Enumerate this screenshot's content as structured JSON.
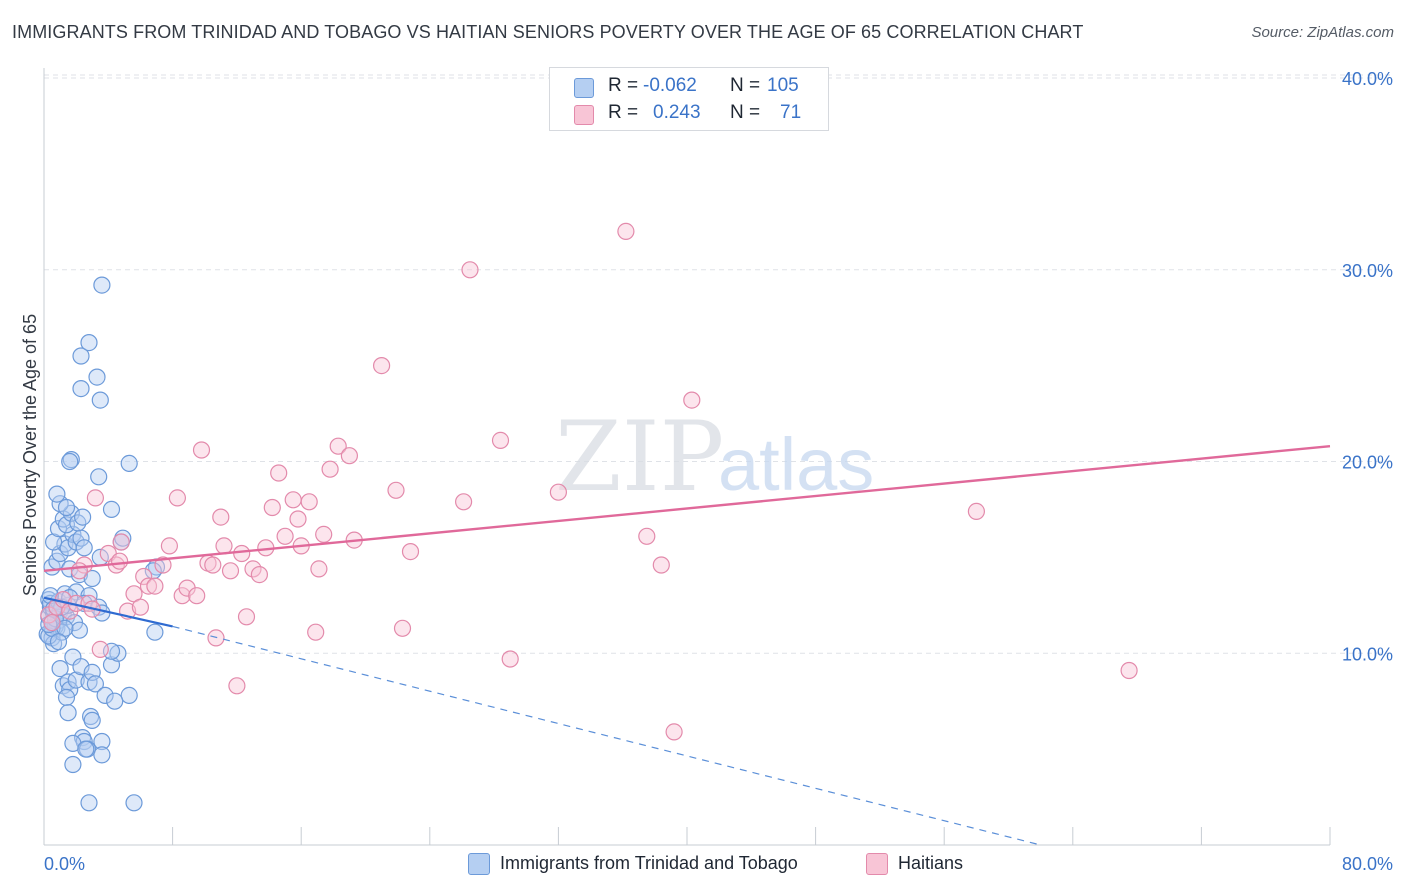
{
  "title": "IMMIGRANTS FROM TRINIDAD AND TOBAGO VS HAITIAN SENIORS POVERTY OVER THE AGE OF 65 CORRELATION CHART",
  "source": "Source: ZipAtlas.com",
  "watermark": {
    "zip": "ZIP",
    "atlas": "atlas"
  },
  "legend": {
    "rows": [
      {
        "r_label": "R =",
        "r_value": "-0.062",
        "n_label": "N =",
        "n_value": "105",
        "color": "#b5cff2",
        "stroke": "#6c9ad9"
      },
      {
        "r_label": "R =",
        "r_value": "0.243",
        "n_label": "N =",
        "n_value": "71",
        "color": "#f8c5d6",
        "stroke": "#e38aab"
      }
    ]
  },
  "bottom_legend": [
    {
      "label": "Immigrants from Trinidad and Tobago",
      "color": "#b5cff2",
      "stroke": "#6c9ad9"
    },
    {
      "label": "Haitians",
      "color": "#f8c5d6",
      "stroke": "#e38aab"
    }
  ],
  "chart_data": {
    "type": "scatter",
    "title": "IMMIGRANTS FROM TRINIDAD AND TOBAGO VS HAITIAN SENIORS POVERTY OVER THE AGE OF 65 CORRELATION CHART",
    "xlabel": "",
    "ylabel": "Seniors Poverty Over the Age of 65",
    "xlim": [
      0,
      80
    ],
    "ylim": [
      0,
      40
    ],
    "x_tick_labels": [
      "0.0%",
      "80.0%"
    ],
    "y_ticks": [
      10,
      20,
      30,
      40
    ],
    "y_tick_labels": [
      "10.0%",
      "20.0%",
      "30.0%",
      "40.0%"
    ],
    "grid": "horizontal dashed",
    "legend_position": "top-center",
    "series": [
      {
        "name": "Immigrants from Trinidad and Tobago",
        "color": "#6c9ad9",
        "fill": "#b5cff2",
        "trend": {
          "x0": 0,
          "y0": 12.9,
          "x1": 8.0,
          "y1": 11.4,
          "dash_to_x": 62,
          "dash_to_y": 0
        },
        "points": [
          [
            0.3,
            11.9
          ],
          [
            0.4,
            12.4
          ],
          [
            0.5,
            11.6
          ],
          [
            0.3,
            12.8
          ],
          [
            0.6,
            12.1
          ],
          [
            0.2,
            11.0
          ],
          [
            0.8,
            11.3
          ],
          [
            0.5,
            10.8
          ],
          [
            0.9,
            11.7
          ],
          [
            0.4,
            12.6
          ],
          [
            1.0,
            12.2
          ],
          [
            0.7,
            11.4
          ],
          [
            1.2,
            12.0
          ],
          [
            0.6,
            10.5
          ],
          [
            1.1,
            11.1
          ],
          [
            0.3,
            10.9
          ],
          [
            0.9,
            12.7
          ],
          [
            1.4,
            11.9
          ],
          [
            1.5,
            12.5
          ],
          [
            1.3,
            13.1
          ],
          [
            1.0,
            9.2
          ],
          [
            1.2,
            8.3
          ],
          [
            1.5,
            8.5
          ],
          [
            1.8,
            9.8
          ],
          [
            1.6,
            8.1
          ],
          [
            2.0,
            8.6
          ],
          [
            1.4,
            7.7
          ],
          [
            2.3,
            9.3
          ],
          [
            2.8,
            8.5
          ],
          [
            1.5,
            6.9
          ],
          [
            3.0,
            9.0
          ],
          [
            3.2,
            8.4
          ],
          [
            2.9,
            6.7
          ],
          [
            3.0,
            6.5
          ],
          [
            2.4,
            5.6
          ],
          [
            2.5,
            5.4
          ],
          [
            1.8,
            5.3
          ],
          [
            2.7,
            5.0
          ],
          [
            2.6,
            5.0
          ],
          [
            3.6,
            5.4
          ],
          [
            3.8,
            7.8
          ],
          [
            3.6,
            4.7
          ],
          [
            1.8,
            4.2
          ],
          [
            2.8,
            2.2
          ],
          [
            5.6,
            2.2
          ],
          [
            5.3,
            7.8
          ],
          [
            4.4,
            7.5
          ],
          [
            4.2,
            9.4
          ],
          [
            4.6,
            10.0
          ],
          [
            4.2,
            10.1
          ],
          [
            6.9,
            11.1
          ],
          [
            0.5,
            14.5
          ],
          [
            0.8,
            14.8
          ],
          [
            1.0,
            15.2
          ],
          [
            1.3,
            15.7
          ],
          [
            1.5,
            15.5
          ],
          [
            1.8,
            16.2
          ],
          [
            2.0,
            15.8
          ],
          [
            2.3,
            16.0
          ],
          [
            2.5,
            15.5
          ],
          [
            0.6,
            15.8
          ],
          [
            0.9,
            16.5
          ],
          [
            1.2,
            17.0
          ],
          [
            1.4,
            16.7
          ],
          [
            1.7,
            17.3
          ],
          [
            2.1,
            16.8
          ],
          [
            2.4,
            17.1
          ],
          [
            1.0,
            17.8
          ],
          [
            1.4,
            17.6
          ],
          [
            0.8,
            18.3
          ],
          [
            1.6,
            14.4
          ],
          [
            2.2,
            14.1
          ],
          [
            3.0,
            13.9
          ],
          [
            2.0,
            13.2
          ],
          [
            2.8,
            13.0
          ],
          [
            2.5,
            12.6
          ],
          [
            3.4,
            12.4
          ],
          [
            3.6,
            12.1
          ],
          [
            4.8,
            15.8
          ],
          [
            4.9,
            16.0
          ],
          [
            4.2,
            17.5
          ],
          [
            3.5,
            15.0
          ],
          [
            3.4,
            19.2
          ],
          [
            5.3,
            19.9
          ],
          [
            1.7,
            20.1
          ],
          [
            1.6,
            20.0
          ],
          [
            7.0,
            14.5
          ],
          [
            6.8,
            14.3
          ],
          [
            2.3,
            23.8
          ],
          [
            3.3,
            24.4
          ],
          [
            3.5,
            23.2
          ],
          [
            2.3,
            25.5
          ],
          [
            2.8,
            26.2
          ],
          [
            3.6,
            29.2
          ],
          [
            0.5,
            11.3
          ],
          [
            0.7,
            11.8
          ],
          [
            1.1,
            12.4
          ],
          [
            1.9,
            11.6
          ],
          [
            2.2,
            11.2
          ],
          [
            0.4,
            13.0
          ],
          [
            1.3,
            11.3
          ],
          [
            0.9,
            10.6
          ],
          [
            1.6,
            12.9
          ],
          [
            0.3,
            11.5
          ],
          [
            0.6,
            12.3
          ]
        ]
      },
      {
        "name": "Haitians",
        "color": "#e38aab",
        "fill": "#f8c5d6",
        "trend": {
          "x0": 0,
          "y0": 14.3,
          "x1": 80,
          "y1": 20.8
        },
        "points": [
          [
            0.3,
            12.0
          ],
          [
            0.5,
            11.6
          ],
          [
            0.8,
            12.4
          ],
          [
            1.2,
            12.8
          ],
          [
            1.6,
            12.2
          ],
          [
            2.0,
            12.6
          ],
          [
            2.5,
            14.6
          ],
          [
            2.8,
            12.6
          ],
          [
            3.0,
            12.3
          ],
          [
            3.5,
            10.2
          ],
          [
            4.0,
            15.2
          ],
          [
            4.5,
            14.6
          ],
          [
            4.8,
            15.8
          ],
          [
            5.2,
            12.2
          ],
          [
            5.6,
            13.1
          ],
          [
            6.0,
            12.4
          ],
          [
            6.2,
            14.0
          ],
          [
            6.5,
            13.5
          ],
          [
            6.9,
            13.5
          ],
          [
            7.4,
            14.6
          ],
          [
            7.8,
            15.6
          ],
          [
            8.3,
            18.1
          ],
          [
            8.6,
            13.0
          ],
          [
            8.9,
            13.4
          ],
          [
            9.5,
            13.0
          ],
          [
            9.8,
            20.6
          ],
          [
            10.2,
            14.7
          ],
          [
            10.5,
            14.6
          ],
          [
            10.7,
            10.8
          ],
          [
            11.0,
            17.1
          ],
          [
            11.2,
            15.6
          ],
          [
            11.6,
            14.3
          ],
          [
            12.0,
            8.3
          ],
          [
            12.3,
            15.2
          ],
          [
            12.6,
            11.9
          ],
          [
            13.0,
            14.4
          ],
          [
            13.4,
            14.1
          ],
          [
            13.8,
            15.5
          ],
          [
            14.2,
            17.6
          ],
          [
            14.6,
            19.4
          ],
          [
            15.0,
            16.1
          ],
          [
            15.5,
            18.0
          ],
          [
            15.8,
            17.0
          ],
          [
            16.0,
            15.6
          ],
          [
            16.5,
            17.9
          ],
          [
            16.9,
            11.1
          ],
          [
            17.1,
            14.4
          ],
          [
            17.4,
            16.2
          ],
          [
            17.8,
            19.6
          ],
          [
            18.3,
            20.8
          ],
          [
            19.0,
            20.3
          ],
          [
            19.3,
            15.9
          ],
          [
            21.0,
            25.0
          ],
          [
            21.9,
            18.5
          ],
          [
            22.3,
            11.3
          ],
          [
            22.8,
            15.3
          ],
          [
            26.1,
            17.9
          ],
          [
            26.5,
            30.0
          ],
          [
            28.4,
            21.1
          ],
          [
            29.0,
            9.7
          ],
          [
            32.0,
            18.4
          ],
          [
            36.2,
            32.0
          ],
          [
            37.5,
            16.1
          ],
          [
            38.4,
            14.6
          ],
          [
            39.2,
            5.9
          ],
          [
            40.3,
            23.2
          ],
          [
            58.0,
            17.4
          ],
          [
            67.5,
            9.1
          ],
          [
            3.2,
            18.1
          ],
          [
            4.7,
            14.8
          ],
          [
            2.2,
            14.3
          ]
        ]
      }
    ]
  }
}
